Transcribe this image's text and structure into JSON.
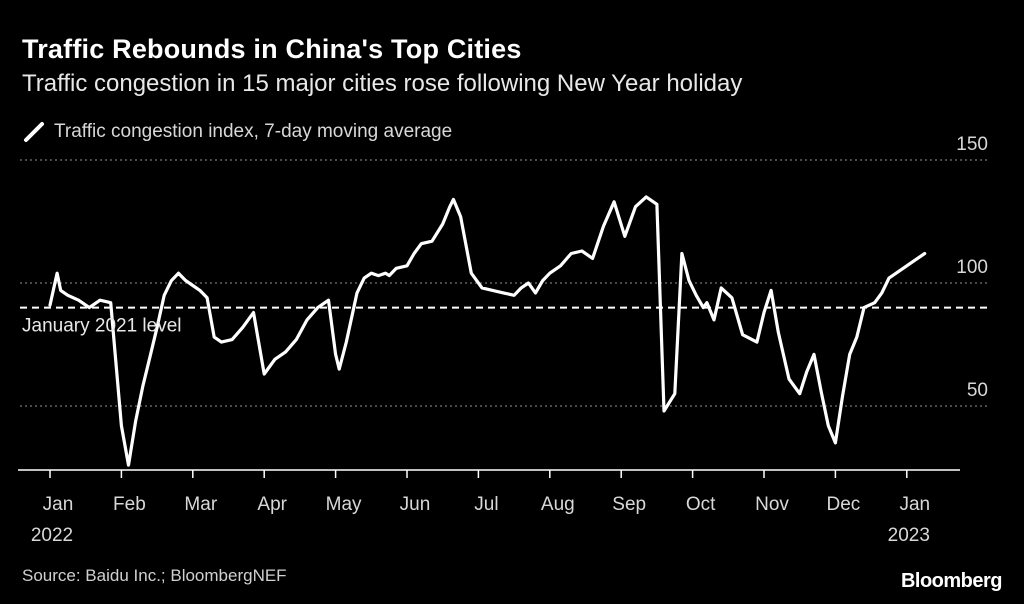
{
  "header": {
    "title": "Traffic Rebounds in China's Top Cities",
    "subtitle": "Traffic congestion in 15 major cities rose following New Year holiday"
  },
  "legend": {
    "label": "Traffic congestion index, 7-day moving average"
  },
  "footer": {
    "source": "Source: Baidu Inc.; BloombergNEF",
    "brand": "Bloomberg"
  },
  "colors": {
    "background": "#000000",
    "line": "#ffffff",
    "grid": "#777777",
    "axis": "#ffffff"
  },
  "chart_data": {
    "type": "line",
    "title": "Traffic Rebounds in China's Top Cities",
    "subtitle": "Traffic congestion in 15 major cities rose following New Year holiday",
    "xlabel": "",
    "ylabel": "",
    "ylim": [
      24,
      150
    ],
    "y_ticks": [
      {
        "value": 50,
        "label": "50"
      },
      {
        "value": 100,
        "label": "100"
      },
      {
        "value": 150,
        "label": "150"
      }
    ],
    "x_ticks": [
      {
        "month": 0,
        "label": "Jan"
      },
      {
        "month": 1,
        "label": "Feb"
      },
      {
        "month": 2,
        "label": "Mar"
      },
      {
        "month": 3,
        "label": "Apr"
      },
      {
        "month": 4,
        "label": "May"
      },
      {
        "month": 5,
        "label": "Jun"
      },
      {
        "month": 6,
        "label": "Jul"
      },
      {
        "month": 7,
        "label": "Aug"
      },
      {
        "month": 8,
        "label": "Sep"
      },
      {
        "month": 9,
        "label": "Oct"
      },
      {
        "month": 10,
        "label": "Nov"
      },
      {
        "month": 11,
        "label": "Dec"
      },
      {
        "month": 12,
        "label": "Jan"
      }
    ],
    "year_labels": [
      {
        "month": 0,
        "label": "2022"
      },
      {
        "month": 12,
        "label": "2023"
      }
    ],
    "reference_line": {
      "value": 90,
      "label": "January 2021 level"
    },
    "legend_position": "top-left",
    "series": [
      {
        "name": "Traffic congestion index, 7-day moving average",
        "x": [
          0.0,
          0.1,
          0.15,
          0.25,
          0.4,
          0.55,
          0.7,
          0.85,
          1.0,
          1.1,
          1.2,
          1.3,
          1.4,
          1.5,
          1.6,
          1.7,
          1.8,
          1.9,
          2.0,
          2.1,
          2.2,
          2.3,
          2.4,
          2.55,
          2.7,
          2.85,
          3.0,
          3.15,
          3.3,
          3.45,
          3.6,
          3.75,
          3.9,
          4.0,
          4.05,
          4.15,
          4.3,
          4.4,
          4.5,
          4.6,
          4.7,
          4.75,
          4.85,
          5.0,
          5.1,
          5.2,
          5.35,
          5.5,
          5.6,
          5.65,
          5.75,
          5.9,
          6.05,
          6.2,
          6.35,
          6.5,
          6.6,
          6.7,
          6.8,
          6.9,
          7.0,
          7.15,
          7.3,
          7.45,
          7.6,
          7.75,
          7.9,
          8.05,
          8.2,
          8.35,
          8.5,
          8.6,
          8.75,
          8.85,
          8.95,
          9.05,
          9.15,
          9.2,
          9.3,
          9.4,
          9.55,
          9.7,
          9.9,
          10.0,
          10.1,
          10.2,
          10.35,
          10.5,
          10.6,
          10.7,
          10.8,
          10.9,
          11.0,
          11.1,
          11.2,
          11.3,
          11.4,
          11.55,
          11.65,
          11.75,
          11.85,
          11.95,
          12.05,
          12.15,
          12.25
        ],
        "values": [
          91,
          104,
          97,
          95,
          93,
          90,
          93,
          92,
          42,
          26,
          44,
          58,
          70,
          82,
          95,
          101,
          104,
          101,
          99,
          97,
          94,
          78,
          76,
          77,
          82,
          88,
          63,
          69,
          72,
          77,
          85,
          90,
          93,
          71,
          65,
          76,
          96,
          102,
          104,
          103,
          104,
          103,
          106,
          107,
          112,
          116,
          117,
          124,
          131,
          134,
          127,
          104,
          98,
          97,
          96,
          95,
          98,
          100,
          96,
          101,
          104,
          107,
          112,
          113,
          110,
          123,
          133,
          119,
          131,
          135,
          132,
          48,
          55,
          112,
          101,
          95,
          90,
          92,
          85,
          98,
          94,
          79,
          76,
          88,
          97,
          80,
          61,
          55,
          64,
          71,
          56,
          42,
          35,
          54,
          71,
          78,
          90,
          92,
          96,
          102,
          104,
          106,
          108,
          110,
          112
        ]
      }
    ]
  }
}
